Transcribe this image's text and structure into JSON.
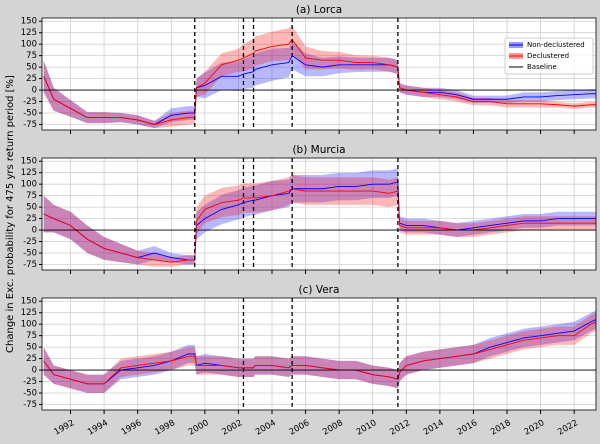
{
  "chart_data": [
    {
      "type": "line",
      "title": "(a)  Lorca",
      "ylabel": "Change in Exc. probability for 475 yrs return period [%]",
      "xlim": [
        1990.3,
        2023.3
      ],
      "ylim": [
        -87,
        157
      ],
      "yticks": [
        -75,
        -50,
        -25,
        0,
        25,
        50,
        75,
        100,
        125,
        150
      ],
      "grid": true,
      "legend": "upper right",
      "vlines": [
        1999.4,
        2002.3,
        2002.9,
        2005.2,
        2011.5
      ],
      "baseline": {
        "name": "Baseline",
        "value": 0,
        "color": "#000000"
      },
      "x": [
        1990.4,
        1991,
        1992,
        1993,
        1994,
        1995,
        1996,
        1997,
        1998,
        1999,
        1999.4,
        1999.5,
        2000,
        2001,
        2002,
        2002.3,
        2002.9,
        2003,
        2004,
        2005,
        2005.2,
        2006,
        2007,
        2008,
        2009,
        2010,
        2011,
        2011.5,
        2011.6,
        2012,
        2013,
        2014,
        2015,
        2016,
        2017,
        2018,
        2019,
        2020,
        2021,
        2022,
        2023,
        2023.3
      ],
      "series": [
        {
          "name": "Non-declustered",
          "color": "#0000ff",
          "values": [
            30,
            -20,
            -40,
            -60,
            -60,
            -60,
            -65,
            -75,
            -55,
            -50,
            -50,
            5,
            10,
            30,
            30,
            35,
            40,
            45,
            55,
            60,
            75,
            55,
            50,
            55,
            55,
            55,
            55,
            50,
            5,
            0,
            -5,
            -5,
            -10,
            -20,
            -20,
            -20,
            -15,
            -15,
            -12,
            -10,
            -8,
            -8
          ],
          "lower": [
            -5,
            -45,
            -58,
            -72,
            -72,
            -70,
            -75,
            -83,
            -70,
            -65,
            -65,
            -15,
            -18,
            0,
            -2,
            2,
            5,
            10,
            20,
            28,
            45,
            30,
            30,
            37,
            39,
            40,
            40,
            35,
            -5,
            -10,
            -15,
            -15,
            -20,
            -28,
            -28,
            -28,
            -25,
            -25,
            -22,
            -20,
            -18,
            -18
          ],
          "upper": [
            65,
            5,
            -22,
            -48,
            -48,
            -50,
            -55,
            -67,
            -40,
            -35,
            -35,
            25,
            38,
            60,
            62,
            68,
            75,
            80,
            90,
            92,
            105,
            80,
            70,
            73,
            71,
            70,
            70,
            65,
            15,
            10,
            5,
            5,
            0,
            -12,
            -12,
            -12,
            -5,
            -5,
            -2,
            0,
            2,
            2
          ]
        },
        {
          "name": "Declustered",
          "color": "#ff0000",
          "values": [
            30,
            -20,
            -40,
            -60,
            -60,
            -60,
            -65,
            -75,
            -65,
            -60,
            -60,
            5,
            15,
            55,
            65,
            70,
            80,
            85,
            95,
            100,
            110,
            70,
            65,
            65,
            60,
            60,
            55,
            50,
            5,
            0,
            -5,
            -10,
            -15,
            -25,
            -25,
            -30,
            -30,
            -30,
            -32,
            -35,
            -32,
            -32
          ],
          "lower": [
            -5,
            -45,
            -58,
            -72,
            -72,
            -70,
            -75,
            -83,
            -80,
            -75,
            -75,
            -15,
            -10,
            30,
            40,
            40,
            48,
            53,
            63,
            65,
            80,
            45,
            45,
            47,
            44,
            45,
            40,
            35,
            -5,
            -10,
            -15,
            -20,
            -25,
            -33,
            -33,
            -38,
            -38,
            -38,
            -38,
            -41,
            -38,
            -38
          ],
          "upper": [
            65,
            5,
            -22,
            -48,
            -48,
            -50,
            -55,
            -67,
            -50,
            -45,
            -45,
            25,
            40,
            80,
            90,
            100,
            112,
            117,
            127,
            135,
            140,
            95,
            85,
            83,
            76,
            75,
            70,
            65,
            15,
            10,
            5,
            0,
            -5,
            -17,
            -17,
            -22,
            -22,
            -22,
            -26,
            -29,
            -26,
            -26
          ]
        }
      ]
    },
    {
      "type": "line",
      "title": "(b)  Murcia",
      "xlim": [
        1990.3,
        2023.3
      ],
      "ylim": [
        -87,
        157
      ],
      "yticks": [
        -75,
        -50,
        -25,
        0,
        25,
        50,
        75,
        100,
        125,
        150
      ],
      "grid": true,
      "vlines": [
        1999.4,
        2002.3,
        2002.9,
        2005.2,
        2011.5
      ],
      "baseline": {
        "value": 0,
        "color": "#000000"
      },
      "x": [
        1990.4,
        1991,
        1992,
        1993,
        1994,
        1995,
        1996,
        1997,
        1998,
        1999,
        1999.4,
        1999.5,
        2000,
        2001,
        2002,
        2002.3,
        2002.9,
        2003,
        2004,
        2005,
        2005.2,
        2006,
        2007,
        2008,
        2009,
        2010,
        2011,
        2011.5,
        2011.6,
        2012,
        2013,
        2014,
        2015,
        2016,
        2017,
        2018,
        2019,
        2020,
        2021,
        2022,
        2023,
        2023.3
      ],
      "series": [
        {
          "color": "#0000ff",
          "values": [
            35,
            25,
            10,
            -20,
            -40,
            -50,
            -60,
            -50,
            -60,
            -65,
            -65,
            10,
            25,
            45,
            55,
            60,
            65,
            65,
            75,
            80,
            90,
            90,
            90,
            95,
            95,
            100,
            100,
            105,
            15,
            10,
            10,
            5,
            0,
            5,
            10,
            15,
            20,
            20,
            25,
            25,
            25,
            25
          ],
          "lower": [
            -5,
            -5,
            -20,
            -50,
            -65,
            -70,
            -75,
            -65,
            -70,
            -75,
            -75,
            -20,
            -5,
            13,
            23,
            28,
            33,
            33,
            43,
            50,
            60,
            60,
            60,
            65,
            65,
            70,
            70,
            75,
            0,
            -5,
            -5,
            -10,
            -15,
            -10,
            -5,
            0,
            5,
            5,
            10,
            10,
            10,
            10
          ],
          "upper": [
            75,
            55,
            40,
            10,
            -15,
            -30,
            -45,
            -35,
            -50,
            -55,
            -55,
            40,
            55,
            77,
            87,
            92,
            97,
            97,
            107,
            110,
            120,
            120,
            120,
            125,
            125,
            130,
            130,
            135,
            30,
            25,
            25,
            20,
            15,
            20,
            25,
            30,
            35,
            35,
            40,
            40,
            40,
            40
          ]
        },
        {
          "color": "#ff0000",
          "values": [
            35,
            25,
            10,
            -20,
            -40,
            -50,
            -60,
            -65,
            -70,
            -65,
            -65,
            20,
            45,
            60,
            65,
            70,
            70,
            70,
            75,
            85,
            90,
            85,
            85,
            85,
            85,
            85,
            80,
            85,
            10,
            5,
            5,
            5,
            0,
            0,
            5,
            10,
            15,
            15,
            15,
            15,
            15,
            15
          ],
          "lower": [
            -5,
            -5,
            -20,
            -50,
            -65,
            -70,
            -75,
            -80,
            -80,
            -75,
            -75,
            -10,
            15,
            28,
            33,
            38,
            38,
            38,
            43,
            55,
            60,
            55,
            55,
            55,
            55,
            55,
            50,
            55,
            -5,
            -10,
            -10,
            -10,
            -15,
            -15,
            -10,
            -5,
            0,
            0,
            0,
            0,
            0,
            0
          ],
          "upper": [
            75,
            55,
            40,
            10,
            -15,
            -30,
            -45,
            -50,
            -60,
            -55,
            -55,
            50,
            75,
            92,
            97,
            102,
            102,
            102,
            107,
            115,
            120,
            115,
            115,
            115,
            115,
            115,
            110,
            115,
            25,
            20,
            20,
            20,
            15,
            15,
            20,
            25,
            30,
            30,
            30,
            30,
            30,
            30
          ]
        }
      ]
    },
    {
      "type": "line",
      "title": "(c)  Vera",
      "xlim": [
        1990.3,
        2023.3
      ],
      "ylim": [
        -87,
        157
      ],
      "yticks": [
        -75,
        -50,
        -25,
        0,
        25,
        50,
        75,
        100,
        125,
        150
      ],
      "grid": true,
      "xticks": [
        1992,
        1994,
        1996,
        1998,
        2000,
        2002,
        2004,
        2006,
        2008,
        2010,
        2012,
        2014,
        2016,
        2018,
        2020,
        2022
      ],
      "vlines": [
        2002.3,
        2005.2,
        2011.5
      ],
      "baseline": {
        "value": 0,
        "color": "#000000"
      },
      "x": [
        1990.4,
        1991,
        1992,
        1993,
        1994,
        1995,
        1996,
        1997,
        1998,
        1999,
        1999.4,
        1999.5,
        2000,
        2001,
        2002,
        2002.3,
        2002.9,
        2003,
        2004,
        2005,
        2005.2,
        2006,
        2007,
        2008,
        2009,
        2010,
        2011,
        2011.5,
        2011.6,
        2012,
        2013,
        2014,
        2015,
        2016,
        2017,
        2018,
        2019,
        2020,
        2021,
        2022,
        2023,
        2023.3
      ],
      "series": [
        {
          "color": "#0000ff",
          "values": [
            20,
            -10,
            -20,
            -30,
            -30,
            0,
            5,
            10,
            20,
            35,
            35,
            10,
            15,
            10,
            5,
            5,
            5,
            10,
            10,
            5,
            10,
            10,
            5,
            0,
            0,
            -10,
            -15,
            -20,
            -5,
            10,
            20,
            25,
            30,
            35,
            50,
            60,
            70,
            75,
            80,
            85,
            105,
            110
          ],
          "lower": [
            -10,
            -30,
            -40,
            -50,
            -50,
            -20,
            -15,
            -10,
            0,
            15,
            15,
            -10,
            -5,
            -10,
            -15,
            -15,
            -15,
            -10,
            -10,
            -15,
            -10,
            -10,
            -15,
            -20,
            -20,
            -30,
            -35,
            -40,
            -25,
            -10,
            0,
            5,
            10,
            15,
            30,
            40,
            50,
            55,
            60,
            65,
            85,
            90
          ],
          "upper": [
            50,
            10,
            0,
            -10,
            -10,
            20,
            25,
            30,
            40,
            55,
            55,
            30,
            35,
            30,
            25,
            25,
            25,
            30,
            30,
            25,
            30,
            30,
            25,
            20,
            20,
            10,
            5,
            0,
            15,
            30,
            40,
            45,
            50,
            55,
            70,
            80,
            90,
            95,
            100,
            105,
            125,
            130
          ]
        },
        {
          "color": "#ff0000",
          "values": [
            20,
            -10,
            -20,
            -30,
            -30,
            5,
            10,
            15,
            20,
            30,
            30,
            10,
            10,
            10,
            5,
            5,
            5,
            10,
            10,
            5,
            10,
            10,
            5,
            0,
            0,
            -10,
            -15,
            -20,
            -5,
            10,
            20,
            25,
            30,
            35,
            45,
            55,
            65,
            70,
            75,
            75,
            100,
            105
          ],
          "lower": [
            -10,
            -30,
            -40,
            -50,
            -50,
            -15,
            -10,
            -5,
            0,
            10,
            10,
            -10,
            -10,
            -10,
            -15,
            -15,
            -15,
            -10,
            -10,
            -15,
            -10,
            -10,
            -15,
            -20,
            -20,
            -30,
            -35,
            -40,
            -25,
            -10,
            0,
            5,
            10,
            15,
            25,
            35,
            45,
            50,
            55,
            55,
            80,
            85
          ],
          "upper": [
            50,
            10,
            0,
            -10,
            -10,
            25,
            30,
            35,
            40,
            50,
            50,
            30,
            30,
            30,
            25,
            25,
            25,
            30,
            30,
            25,
            30,
            30,
            25,
            20,
            20,
            10,
            5,
            0,
            15,
            30,
            40,
            45,
            50,
            55,
            65,
            75,
            85,
            90,
            95,
            95,
            120,
            125
          ]
        }
      ]
    }
  ]
}
